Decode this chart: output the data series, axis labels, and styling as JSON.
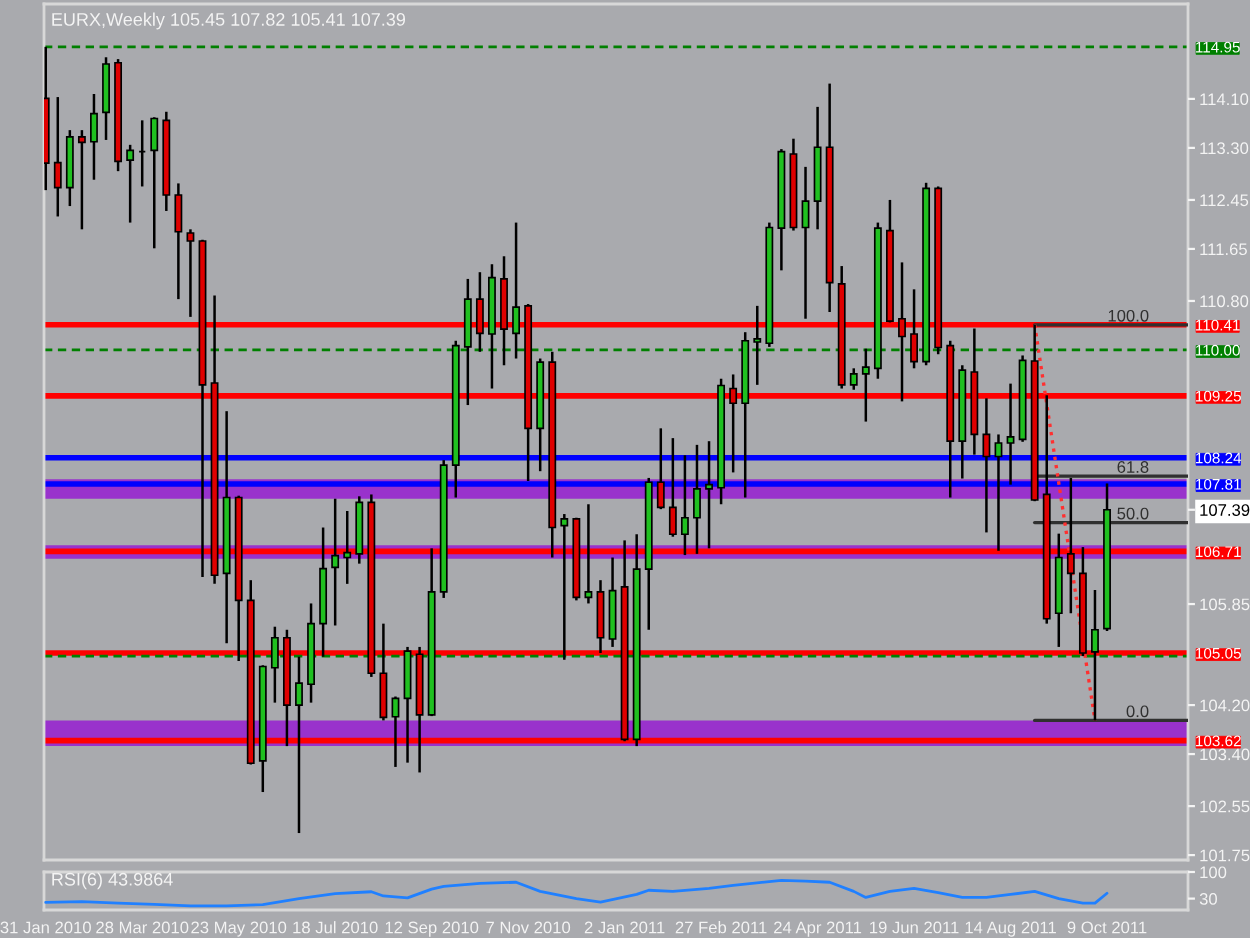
{
  "chart_data": [
    {
      "type": "candlestick",
      "title": "EURX,Weekly 105.45 107.82 105.41 107.39",
      "x": [
        "2010-01-31",
        "2010-02-07",
        "2010-02-14",
        "2010-02-21",
        "2010-02-28",
        "2010-03-07",
        "2010-03-14",
        "2010-03-21",
        "2010-03-28",
        "2010-04-04",
        "2010-04-11",
        "2010-04-18",
        "2010-04-25",
        "2010-05-02",
        "2010-05-09",
        "2010-05-16",
        "2010-05-23",
        "2010-05-30",
        "2010-06-06",
        "2010-06-13",
        "2010-06-20",
        "2010-06-27",
        "2010-07-04",
        "2010-07-11",
        "2010-07-18",
        "2010-07-25",
        "2010-08-01",
        "2010-08-08",
        "2010-08-15",
        "2010-08-22",
        "2010-08-29",
        "2010-09-05",
        "2010-09-12",
        "2010-09-19",
        "2010-09-26",
        "2010-10-03",
        "2010-10-10",
        "2010-10-17",
        "2010-10-24",
        "2010-10-31",
        "2010-11-07",
        "2010-11-14",
        "2010-11-21",
        "2010-11-28",
        "2010-12-05",
        "2010-12-12",
        "2010-12-19",
        "2010-12-26",
        "2011-01-02",
        "2011-01-09",
        "2011-01-16",
        "2011-01-23",
        "2011-01-30",
        "2011-02-06",
        "2011-02-13",
        "2011-02-20",
        "2011-02-27",
        "2011-03-06",
        "2011-03-13",
        "2011-03-20",
        "2011-03-27",
        "2011-04-03",
        "2011-04-10",
        "2011-04-17",
        "2011-04-24",
        "2011-05-01",
        "2011-05-08",
        "2011-05-15",
        "2011-05-22",
        "2011-05-29",
        "2011-06-05",
        "2011-06-12",
        "2011-06-19",
        "2011-06-26",
        "2011-07-03",
        "2011-07-10",
        "2011-07-17",
        "2011-07-24",
        "2011-07-31",
        "2011-08-07",
        "2011-08-14",
        "2011-08-21",
        "2011-08-28",
        "2011-09-04",
        "2011-09-11",
        "2011-09-18",
        "2011-09-25",
        "2011-10-02",
        "2011-10-09"
      ],
      "ohlc": [
        [
          114.11,
          114.95,
          112.61,
          113.05
        ],
        [
          113.06,
          114.13,
          112.18,
          112.65
        ],
        [
          112.65,
          113.59,
          112.35,
          113.48
        ],
        [
          113.48,
          113.59,
          111.97,
          113.39
        ],
        [
          113.4,
          114.18,
          112.78,
          113.86
        ],
        [
          113.88,
          114.78,
          113.43,
          114.67
        ],
        [
          114.69,
          114.75,
          112.92,
          113.08
        ],
        [
          113.1,
          113.35,
          112.08,
          113.26
        ],
        [
          113.24,
          113.75,
          112.67,
          113.24
        ],
        [
          113.26,
          113.8,
          111.66,
          113.78
        ],
        [
          113.75,
          113.89,
          112.27,
          112.53
        ],
        [
          112.53,
          112.72,
          110.83,
          111.93
        ],
        [
          111.91,
          111.97,
          110.54,
          111.78
        ],
        [
          111.78,
          111.8,
          106.29,
          109.43
        ],
        [
          109.46,
          110.89,
          106.18,
          106.32
        ],
        [
          106.35,
          109.0,
          105.21,
          107.59
        ],
        [
          107.59,
          107.62,
          104.92,
          105.91
        ],
        [
          105.91,
          106.24,
          103.23,
          103.25
        ],
        [
          103.29,
          104.85,
          102.78,
          104.83
        ],
        [
          104.81,
          105.48,
          104.24,
          105.3
        ],
        [
          105.3,
          105.43,
          103.53,
          104.2
        ],
        [
          104.2,
          104.99,
          102.11,
          104.56
        ],
        [
          104.54,
          105.86,
          104.24,
          105.53
        ],
        [
          105.53,
          107.1,
          104.99,
          106.43
        ],
        [
          106.45,
          107.57,
          105.5,
          106.64
        ],
        [
          106.61,
          107.37,
          106.18,
          106.69
        ],
        [
          106.67,
          107.61,
          106.51,
          107.51
        ],
        [
          107.51,
          107.64,
          104.66,
          104.72
        ],
        [
          104.72,
          105.53,
          103.95,
          104.0
        ],
        [
          104.01,
          104.34,
          103.19,
          104.31
        ],
        [
          104.31,
          105.15,
          103.26,
          105.08
        ],
        [
          105.03,
          105.15,
          103.1,
          104.04
        ],
        [
          104.04,
          106.76,
          104.02,
          106.05
        ],
        [
          106.05,
          108.2,
          105.95,
          108.12
        ],
        [
          108.12,
          110.15,
          107.59,
          110.07
        ],
        [
          110.05,
          111.16,
          109.1,
          110.83
        ],
        [
          110.83,
          111.27,
          109.97,
          110.27
        ],
        [
          110.26,
          111.4,
          109.37,
          111.18
        ],
        [
          111.16,
          111.53,
          109.75,
          110.34
        ],
        [
          110.27,
          112.08,
          109.86,
          110.7
        ],
        [
          110.72,
          110.75,
          107.86,
          108.72
        ],
        [
          108.72,
          109.86,
          108.02,
          109.8
        ],
        [
          109.8,
          109.97,
          106.61,
          107.1
        ],
        [
          107.13,
          107.32,
          104.94,
          107.24
        ],
        [
          107.24,
          107.26,
          105.91,
          105.96
        ],
        [
          105.96,
          107.48,
          105.86,
          106.05
        ],
        [
          106.05,
          106.24,
          105.05,
          105.3
        ],
        [
          105.28,
          106.61,
          105.15,
          106.07
        ],
        [
          106.13,
          106.89,
          103.61,
          103.64
        ],
        [
          103.64,
          106.99,
          103.53,
          106.42
        ],
        [
          106.42,
          107.91,
          105.43,
          107.84
        ],
        [
          107.84,
          108.72,
          107.4,
          107.43
        ],
        [
          107.43,
          108.56,
          106.95,
          106.99
        ],
        [
          106.99,
          108.28,
          106.65,
          107.26
        ],
        [
          107.26,
          108.45,
          106.67,
          107.73
        ],
        [
          107.73,
          108.51,
          106.76,
          107.8
        ],
        [
          107.75,
          109.53,
          107.48,
          109.42
        ],
        [
          109.37,
          109.6,
          108.0,
          109.13
        ],
        [
          109.13,
          110.29,
          107.59,
          110.15
        ],
        [
          110.13,
          110.72,
          109.43,
          110.18
        ],
        [
          110.11,
          112.08,
          110.05,
          112.0
        ],
        [
          111.99,
          113.28,
          111.3,
          113.24
        ],
        [
          113.2,
          113.45,
          111.95,
          112.0
        ],
        [
          112.0,
          112.99,
          110.51,
          112.43
        ],
        [
          112.43,
          113.97,
          111.97,
          113.31
        ],
        [
          113.31,
          114.35,
          110.62,
          111.1
        ],
        [
          111.08,
          111.37,
          109.37,
          109.43
        ],
        [
          109.43,
          109.7,
          109.35,
          109.61
        ],
        [
          109.61,
          110.02,
          108.83,
          109.72
        ],
        [
          109.7,
          112.08,
          109.53,
          111.99
        ],
        [
          111.95,
          112.45,
          110.45,
          110.47
        ],
        [
          110.51,
          111.43,
          109.16,
          110.22
        ],
        [
          110.26,
          110.99,
          109.7,
          109.81
        ],
        [
          109.81,
          112.73,
          109.75,
          112.64
        ],
        [
          112.64,
          112.67,
          109.93,
          110.04
        ],
        [
          110.07,
          110.15,
          107.59,
          108.51
        ],
        [
          108.51,
          109.75,
          107.9,
          109.67
        ],
        [
          109.64,
          110.35,
          108.29,
          108.62
        ],
        [
          108.62,
          109.21,
          107.02,
          108.26
        ],
        [
          108.26,
          108.62,
          106.72,
          108.48
        ],
        [
          108.48,
          109.45,
          107.8,
          108.58
        ],
        [
          108.54,
          109.91,
          108.5,
          109.83
        ],
        [
          109.82,
          110.41,
          107.53,
          107.55
        ],
        [
          107.64,
          109.26,
          105.53,
          105.61
        ],
        [
          105.7,
          107.0,
          105.15,
          106.61
        ],
        [
          106.67,
          107.91,
          105.7,
          106.35
        ],
        [
          106.35,
          106.78,
          105.0,
          105.05
        ],
        [
          105.07,
          106.08,
          103.95,
          105.43
        ],
        [
          105.45,
          107.82,
          105.41,
          107.39
        ]
      ],
      "colors": [
        "#e00000",
        "#e00000",
        "#20c020",
        "#e00000",
        "#20c020",
        "#20c020",
        "#e00000",
        "#20c020",
        "#000000",
        "#20c020",
        "#e00000",
        "#e00000",
        "#e00000",
        "#e00000",
        "#e00000",
        "#20c020",
        "#e00000",
        "#e00000",
        "#20c020",
        "#20c020",
        "#e00000",
        "#20c020",
        "#20c020",
        "#20c020",
        "#20c020",
        "#20c020",
        "#20c020",
        "#e00000",
        "#e00000",
        "#20c020",
        "#20c020",
        "#e00000",
        "#20c020",
        "#20c020",
        "#20c020",
        "#20c020",
        "#e00000",
        "#20c020",
        "#e00000",
        "#20c020",
        "#e00000",
        "#20c020",
        "#e00000",
        "#20c020",
        "#e00000",
        "#20c020",
        "#e00000",
        "#20c020",
        "#e00000",
        "#20c020",
        "#20c020",
        "#e00000",
        "#e00000",
        "#20c020",
        "#20c020",
        "#20c020",
        "#20c020",
        "#e00000",
        "#20c020",
        "#20c020",
        "#20c020",
        "#20c020",
        "#e00000",
        "#20c020",
        "#20c020",
        "#e00000",
        "#e00000",
        "#20c020",
        "#20c020",
        "#20c020",
        "#e00000",
        "#e00000",
        "#e00000",
        "#20c020",
        "#e00000",
        "#e00000",
        "#20c020",
        "#e00000",
        "#e00000",
        "#20c020",
        "#20c020",
        "#20c020",
        "#e00000",
        "#e00000",
        "#20c020",
        "#e00000",
        "#e00000",
        "#20c020",
        "#20c020"
      ],
      "xlim": [
        "2010-01-30",
        "2011-11-25"
      ],
      "ylim": [
        101.67,
        115.65
      ],
      "yticks": [
        {
          "value": 114.1,
          "label": "114.10"
        },
        {
          "value": 113.3,
          "label": "113.30"
        },
        112.45,
        111.65,
        {
          "value": 110.8,
          "label": "110.80"
        },
        107.39,
        105.85,
        {
          "value": 104.2,
          "label": "104.20"
        },
        {
          "value": 103.4,
          "label": "103.40"
        },
        102.55,
        101.75
      ],
      "tick_labels": "y",
      "ref_lines": [
        {
          "axis": "y",
          "value": 114.95,
          "label": "114.95",
          "color": "#008000",
          "line_style": "dashed"
        },
        {
          "axis": "y",
          "value": 110.41,
          "label": "110.41",
          "color": "#ff0000"
        },
        {
          "axis": "y",
          "value": 110.0,
          "label": "110.00",
          "color": "#008000",
          "line_style": "dashed"
        },
        {
          "axis": "y",
          "value": 109.25,
          "label": "109.25",
          "color": "#ff0000"
        },
        {
          "axis": "y",
          "value": 108.24,
          "label": "108.24",
          "color": "#0000ff"
        },
        {
          "axis": "y",
          "value": 107.81,
          "label": "107.81",
          "color": "#0000ff"
        },
        {
          "axis": "y",
          "value": 106.71,
          "label": "106.71",
          "color": "#ff0000"
        },
        {
          "axis": "y",
          "value": 105.05,
          "label": "105.05",
          "color": "#ff0000"
        },
        {
          "axis": "y",
          "value": 105.0,
          "color": "#008000",
          "line_style": "dashed"
        },
        {
          "axis": "y",
          "value": 103.62,
          "label": "103.62",
          "color": "#ff0000"
        }
      ],
      "bands": [
        {
          "axis": "y",
          "from": 107.57,
          "to": 107.89,
          "color": "#9932cc"
        },
        {
          "axis": "y",
          "from": 106.59,
          "to": 106.81,
          "color": "#9932cc"
        },
        {
          "axis": "y",
          "from": 103.53,
          "to": 103.95,
          "color": "#9932cc"
        }
      ],
      "series": [
        {
          "type": "line",
          "name": "100.0",
          "color": "#303030",
          "x": [
            "2011-08-28",
            "2011-11-25"
          ],
          "values": [
            110.41,
            110.41
          ]
        },
        {
          "type": "line",
          "name": "61.8",
          "color": "#303030",
          "x": [
            "2011-08-28",
            "2011-11-25"
          ],
          "values": [
            107.94,
            107.94
          ]
        },
        {
          "type": "line",
          "name": "50.0",
          "color": "#303030",
          "x": [
            "2011-08-28",
            "2011-11-25"
          ],
          "values": [
            107.18,
            107.18
          ]
        },
        {
          "type": "line",
          "name": "0.0",
          "color": "#303030",
          "x": [
            "2011-08-28",
            "2011-11-25"
          ],
          "values": [
            103.95,
            103.95
          ]
        },
        {
          "type": "line",
          "color": "#ff3030",
          "line_style": "dotted",
          "x": [
            "2011-08-28",
            "2011-10-02"
          ],
          "values": [
            110.41,
            103.95
          ]
        }
      ]
    },
    {
      "type": "line",
      "title": "RSI(6) 43.9864",
      "color": "#2080ff",
      "x": [
        "2010-01-31",
        "2010-02-21",
        "2010-03-14",
        "2010-04-04",
        "2010-04-25",
        "2010-05-16",
        "2010-06-06",
        "2010-06-27",
        "2010-07-18",
        "2010-08-08",
        "2010-08-15",
        "2010-08-29",
        "2010-09-12",
        "2010-09-19",
        "2010-10-10",
        "2010-10-31",
        "2010-11-14",
        "2010-12-05",
        "2010-12-19",
        "2011-01-09",
        "2011-01-16",
        "2011-01-30",
        "2011-02-20",
        "2011-03-06",
        "2011-04-03",
        "2011-04-17",
        "2011-05-01",
        "2011-05-15",
        "2011-05-22",
        "2011-06-05",
        "2011-06-19",
        "2011-07-03",
        "2011-07-17",
        "2011-07-31",
        "2011-08-14",
        "2011-08-28",
        "2011-09-11",
        "2011-09-25",
        "2011-10-02",
        "2011-10-09"
      ],
      "values": [
        20,
        22,
        18,
        15,
        11,
        11,
        14,
        30,
        43,
        48,
        37,
        32,
        55,
        62,
        70,
        73,
        49,
        30,
        21,
        41,
        52,
        49,
        57,
        65,
        78,
        76,
        73,
        49,
        33,
        49,
        57,
        46,
        33,
        33,
        41,
        49,
        30,
        18,
        18,
        43.9864
      ],
      "xlim": [
        "2010-01-30",
        "2011-11-25"
      ],
      "ylim": [
        0,
        100
      ],
      "yticks": [
        100,
        30
      ],
      "xticks": [
        {
          "value": "2010-01-31",
          "label": "31 Jan 2010"
        },
        {
          "value": "2010-03-28",
          "label": "28 Mar 2010"
        },
        {
          "value": "2010-05-23",
          "label": "23 May 2010"
        },
        {
          "value": "2010-07-18",
          "label": "18 Jul 2010"
        },
        {
          "value": "2010-09-12",
          "label": "12 Sep 2010"
        },
        {
          "value": "2010-11-07",
          "label": "7 Nov 2010"
        },
        {
          "value": "2011-01-02",
          "label": "2 Jan 2011"
        },
        {
          "value": "2011-02-27",
          "label": "27 Feb 2011"
        },
        {
          "value": "2011-04-24",
          "label": "24 Apr 2011"
        },
        {
          "value": "2011-06-19",
          "label": "19 Jun 2011"
        },
        {
          "value": "2011-08-14",
          "label": "14 Aug 2011"
        },
        {
          "value": "2011-10-09",
          "label": "9 Oct 2011"
        }
      ]
    }
  ]
}
